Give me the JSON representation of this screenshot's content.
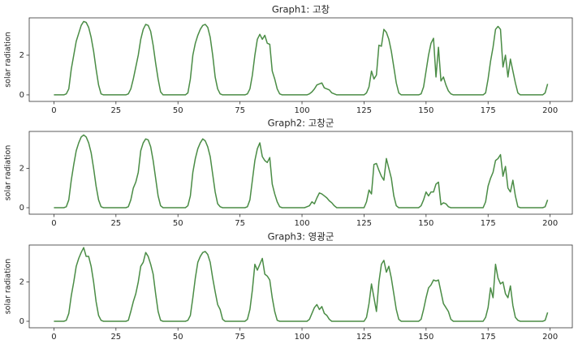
{
  "chart_data": [
    {
      "type": "line",
      "title": "Graph1: 고창",
      "ylabel": "solar radiation",
      "x": [
        0,
        1,
        2,
        3,
        4,
        5,
        6,
        7,
        8,
        9,
        10,
        11,
        12,
        13,
        14,
        15,
        16,
        17,
        18,
        19,
        20,
        21,
        22,
        23,
        24,
        25,
        26,
        27,
        28,
        29,
        30,
        31,
        32,
        33,
        34,
        35,
        36,
        37,
        38,
        39,
        40,
        41,
        42,
        43,
        44,
        45,
        46,
        47,
        48,
        49,
        50,
        51,
        52,
        53,
        54,
        55,
        56,
        57,
        58,
        59,
        60,
        61,
        62,
        63,
        64,
        65,
        66,
        67,
        68,
        69,
        70,
        71,
        72,
        73,
        74,
        75,
        76,
        77,
        78,
        79,
        80,
        81,
        82,
        83,
        84,
        85,
        86,
        87,
        88,
        89,
        90,
        91,
        92,
        93,
        94,
        95,
        96,
        97,
        98,
        99,
        100,
        101,
        102,
        103,
        104,
        105,
        106,
        107,
        108,
        109,
        110,
        111,
        112,
        113,
        114,
        115,
        116,
        117,
        118,
        119,
        120,
        121,
        122,
        123,
        124,
        125,
        126,
        127,
        128,
        129,
        130,
        131,
        132,
        133,
        134,
        135,
        136,
        137,
        138,
        139,
        140,
        141,
        142,
        143,
        144,
        145,
        146,
        147,
        148,
        149,
        150,
        151,
        152,
        153,
        154,
        155,
        156,
        157,
        158,
        159,
        160,
        161,
        162,
        163,
        164,
        165,
        166,
        167,
        168,
        169,
        170,
        171,
        172,
        173,
        174,
        175,
        176,
        177,
        178,
        179,
        180,
        181,
        182,
        183,
        184,
        185,
        186,
        187,
        188,
        189,
        190,
        191,
        192,
        193,
        194,
        195,
        196,
        197,
        198,
        199
      ],
      "series": [
        {
          "color": "#4a8c45",
          "values": [
            0,
            0,
            0,
            0,
            0,
            0.05,
            0.3,
            1.3,
            2.0,
            2.7,
            3.1,
            3.5,
            3.7,
            3.65,
            3.4,
            2.9,
            2.2,
            1.3,
            0.5,
            0.05,
            0,
            0,
            0,
            0,
            0,
            0,
            0,
            0,
            0,
            0,
            0.05,
            0.3,
            0.8,
            1.4,
            2.0,
            2.8,
            3.3,
            3.55,
            3.5,
            3.2,
            2.5,
            1.6,
            0.8,
            0.15,
            0,
            0,
            0,
            0,
            0,
            0,
            0,
            0,
            0,
            0,
            0.1,
            0.8,
            2.0,
            2.6,
            3.0,
            3.3,
            3.5,
            3.55,
            3.4,
            2.9,
            2.0,
            0.9,
            0.3,
            0.05,
            0,
            0,
            0,
            0,
            0,
            0,
            0,
            0,
            0,
            0,
            0.05,
            0.3,
            1.0,
            2.0,
            2.8,
            3.05,
            2.8,
            3.0,
            2.6,
            2.55,
            1.2,
            0.8,
            0.3,
            0.05,
            0,
            0,
            0,
            0,
            0,
            0,
            0,
            0,
            0,
            0,
            0,
            0.05,
            0.15,
            0.3,
            0.5,
            0.55,
            0.6,
            0.35,
            0.3,
            0.25,
            0.1,
            0.05,
            0,
            0,
            0,
            0,
            0,
            0,
            0,
            0,
            0,
            0,
            0,
            0,
            0.1,
            0.4,
            1.2,
            0.8,
            1.0,
            2.5,
            2.45,
            3.3,
            3.15,
            2.8,
            2.2,
            1.4,
            0.6,
            0.1,
            0,
            0,
            0,
            0,
            0,
            0,
            0,
            0,
            0.05,
            0.4,
            1.2,
            2.0,
            2.6,
            2.85,
            0.9,
            2.4,
            0.7,
            0.9,
            0.5,
            0.2,
            0.05,
            0,
            0,
            0,
            0,
            0,
            0,
            0,
            0,
            0,
            0,
            0,
            0,
            0,
            0.1,
            0.8,
            1.7,
            2.4,
            3.3,
            3.45,
            3.3,
            1.4,
            2.0,
            0.9,
            1.8,
            1.2,
            0.6,
            0.1,
            0,
            0,
            0,
            0,
            0,
            0,
            0,
            0,
            0,
            0,
            0.1,
            0.55
          ]
        }
      ],
      "xlim": [
        -9.95,
        208.95
      ],
      "xticks": [
        0,
        25,
        50,
        75,
        100,
        125,
        150,
        175,
        200
      ],
      "ylim": [
        -0.33,
        3.88
      ],
      "yticks": [
        0,
        2
      ]
    },
    {
      "type": "line",
      "title": "Graph2: 고창군",
      "ylabel": "solar radiation",
      "x": [
        0,
        1,
        2,
        3,
        4,
        5,
        6,
        7,
        8,
        9,
        10,
        11,
        12,
        13,
        14,
        15,
        16,
        17,
        18,
        19,
        20,
        21,
        22,
        23,
        24,
        25,
        26,
        27,
        28,
        29,
        30,
        31,
        32,
        33,
        34,
        35,
        36,
        37,
        38,
        39,
        40,
        41,
        42,
        43,
        44,
        45,
        46,
        47,
        48,
        49,
        50,
        51,
        52,
        53,
        54,
        55,
        56,
        57,
        58,
        59,
        60,
        61,
        62,
        63,
        64,
        65,
        66,
        67,
        68,
        69,
        70,
        71,
        72,
        73,
        74,
        75,
        76,
        77,
        78,
        79,
        80,
        81,
        82,
        83,
        84,
        85,
        86,
        87,
        88,
        89,
        90,
        91,
        92,
        93,
        94,
        95,
        96,
        97,
        98,
        99,
        100,
        101,
        102,
        103,
        104,
        105,
        106,
        107,
        108,
        109,
        110,
        111,
        112,
        113,
        114,
        115,
        116,
        117,
        118,
        119,
        120,
        121,
        122,
        123,
        124,
        125,
        126,
        127,
        128,
        129,
        130,
        131,
        132,
        133,
        134,
        135,
        136,
        137,
        138,
        139,
        140,
        141,
        142,
        143,
        144,
        145,
        146,
        147,
        148,
        149,
        150,
        151,
        152,
        153,
        154,
        155,
        156,
        157,
        158,
        159,
        160,
        161,
        162,
        163,
        164,
        165,
        166,
        167,
        168,
        169,
        170,
        171,
        172,
        173,
        174,
        175,
        176,
        177,
        178,
        179,
        180,
        181,
        182,
        183,
        184,
        185,
        186,
        187,
        188,
        189,
        190,
        191,
        192,
        193,
        194,
        195,
        196,
        197,
        198,
        199
      ],
      "series": [
        {
          "color": "#4a8c45",
          "values": [
            0,
            0,
            0,
            0,
            0,
            0.05,
            0.4,
            1.4,
            2.2,
            2.9,
            3.3,
            3.6,
            3.7,
            3.6,
            3.3,
            2.8,
            2.0,
            1.1,
            0.4,
            0.05,
            0,
            0,
            0,
            0,
            0,
            0,
            0,
            0,
            0,
            0,
            0.05,
            0.4,
            1.0,
            1.3,
            1.8,
            2.9,
            3.3,
            3.5,
            3.45,
            3.1,
            2.4,
            1.5,
            0.6,
            0.1,
            0,
            0,
            0,
            0,
            0,
            0,
            0,
            0,
            0,
            0,
            0.1,
            0.6,
            1.8,
            2.5,
            3.0,
            3.3,
            3.5,
            3.4,
            3.1,
            2.6,
            1.7,
            0.8,
            0.2,
            0.05,
            0,
            0,
            0,
            0,
            0,
            0,
            0,
            0,
            0,
            0,
            0.05,
            0.4,
            1.4,
            2.4,
            3.0,
            3.3,
            2.6,
            2.4,
            2.3,
            2.55,
            1.2,
            0.7,
            0.3,
            0.05,
            0,
            0,
            0,
            0,
            0,
            0,
            0,
            0,
            0,
            0,
            0.05,
            0.1,
            0.3,
            0.2,
            0.5,
            0.75,
            0.7,
            0.6,
            0.5,
            0.35,
            0.25,
            0.1,
            0,
            0,
            0,
            0,
            0,
            0,
            0,
            0,
            0,
            0,
            0,
            0,
            0.3,
            0.9,
            0.7,
            2.2,
            2.25,
            1.9,
            1.6,
            1.4,
            2.5,
            2.0,
            1.5,
            0.6,
            0.1,
            0,
            0,
            0,
            0,
            0,
            0,
            0,
            0,
            0,
            0.1,
            0.4,
            0.8,
            0.6,
            0.8,
            0.8,
            1.2,
            1.3,
            0.15,
            0.25,
            0.2,
            0.05,
            0,
            0,
            0,
            0,
            0,
            0,
            0,
            0,
            0,
            0,
            0,
            0,
            0,
            0,
            0.3,
            1.1,
            1.5,
            1.8,
            2.4,
            2.5,
            2.7,
            1.6,
            2.1,
            1.0,
            0.8,
            1.4,
            0.6,
            0.05,
            0,
            0,
            0,
            0,
            0,
            0,
            0,
            0,
            0,
            0,
            0.05,
            0.4
          ]
        }
      ],
      "xlim": [
        -9.95,
        208.95
      ],
      "xticks": [
        0,
        25,
        50,
        75,
        100,
        125,
        150,
        175,
        200
      ],
      "ylim": [
        -0.33,
        3.88
      ],
      "yticks": [
        0,
        2
      ]
    },
    {
      "type": "line",
      "title": "Graph3: 영광군",
      "ylabel": "solar radiation",
      "x": [
        0,
        1,
        2,
        3,
        4,
        5,
        6,
        7,
        8,
        9,
        10,
        11,
        12,
        13,
        14,
        15,
        16,
        17,
        18,
        19,
        20,
        21,
        22,
        23,
        24,
        25,
        26,
        27,
        28,
        29,
        30,
        31,
        32,
        33,
        34,
        35,
        36,
        37,
        38,
        39,
        40,
        41,
        42,
        43,
        44,
        45,
        46,
        47,
        48,
        49,
        50,
        51,
        52,
        53,
        54,
        55,
        56,
        57,
        58,
        59,
        60,
        61,
        62,
        63,
        64,
        65,
        66,
        67,
        68,
        69,
        70,
        71,
        72,
        73,
        74,
        75,
        76,
        77,
        78,
        79,
        80,
        81,
        82,
        83,
        84,
        85,
        86,
        87,
        88,
        89,
        90,
        91,
        92,
        93,
        94,
        95,
        96,
        97,
        98,
        99,
        100,
        101,
        102,
        103,
        104,
        105,
        106,
        107,
        108,
        109,
        110,
        111,
        112,
        113,
        114,
        115,
        116,
        117,
        118,
        119,
        120,
        121,
        122,
        123,
        124,
        125,
        126,
        127,
        128,
        129,
        130,
        131,
        132,
        133,
        134,
        135,
        136,
        137,
        138,
        139,
        140,
        141,
        142,
        143,
        144,
        145,
        146,
        147,
        148,
        149,
        150,
        151,
        152,
        153,
        154,
        155,
        156,
        157,
        158,
        159,
        160,
        161,
        162,
        163,
        164,
        165,
        166,
        167,
        168,
        169,
        170,
        171,
        172,
        173,
        174,
        175,
        176,
        177,
        178,
        179,
        180,
        181,
        182,
        183,
        184,
        185,
        186,
        187,
        188,
        189,
        190,
        191,
        192,
        193,
        194,
        195,
        196,
        197,
        198,
        199
      ],
      "series": [
        {
          "color": "#4a8c45",
          "values": [
            0,
            0,
            0,
            0,
            0,
            0.05,
            0.4,
            1.3,
            2.0,
            2.8,
            3.2,
            3.5,
            3.75,
            3.3,
            3.3,
            2.8,
            2.0,
            1.0,
            0.3,
            0.05,
            0,
            0,
            0,
            0,
            0,
            0,
            0,
            0,
            0,
            0,
            0.05,
            0.5,
            1.0,
            1.4,
            2.0,
            2.8,
            3.0,
            3.5,
            3.3,
            2.9,
            2.4,
            1.4,
            0.5,
            0.05,
            0,
            0,
            0,
            0,
            0,
            0,
            0,
            0,
            0,
            0,
            0.05,
            0.3,
            1.2,
            2.2,
            3.0,
            3.3,
            3.5,
            3.55,
            3.4,
            3.0,
            2.2,
            1.5,
            0.85,
            0.6,
            0.1,
            0,
            0,
            0,
            0,
            0,
            0,
            0,
            0,
            0,
            0.1,
            0.6,
            1.6,
            2.9,
            2.6,
            2.9,
            3.2,
            2.4,
            2.3,
            2.1,
            1.2,
            0.5,
            0.05,
            0,
            0,
            0,
            0,
            0,
            0,
            0,
            0,
            0,
            0,
            0,
            0,
            0.1,
            0.4,
            0.7,
            0.85,
            0.6,
            0.75,
            0.4,
            0.3,
            0.1,
            0,
            0,
            0,
            0,
            0,
            0,
            0,
            0,
            0,
            0,
            0,
            0,
            0,
            0,
            0.2,
            0.9,
            1.9,
            1.2,
            0.5,
            2.0,
            2.9,
            3.1,
            2.5,
            2.8,
            2.2,
            1.4,
            0.6,
            0.1,
            0,
            0,
            0,
            0,
            0,
            0,
            0,
            0,
            0.1,
            0.6,
            1.2,
            1.7,
            1.85,
            2.1,
            2.05,
            2.1,
            1.5,
            0.9,
            0.7,
            0.5,
            0.1,
            0,
            0,
            0,
            0,
            0,
            0,
            0,
            0,
            0,
            0,
            0,
            0,
            0,
            0.2,
            0.7,
            1.7,
            1.2,
            2.9,
            2.2,
            1.9,
            2.0,
            1.4,
            1.2,
            1.8,
            0.8,
            0.2,
            0.05,
            0,
            0,
            0,
            0,
            0,
            0,
            0,
            0,
            0,
            0,
            0.05,
            0.45
          ]
        }
      ],
      "xlim": [
        -9.95,
        208.95
      ],
      "xticks": [
        0,
        25,
        50,
        75,
        100,
        125,
        150,
        175,
        200
      ],
      "ylim": [
        -0.33,
        3.88
      ],
      "yticks": [
        0,
        2
      ]
    }
  ]
}
